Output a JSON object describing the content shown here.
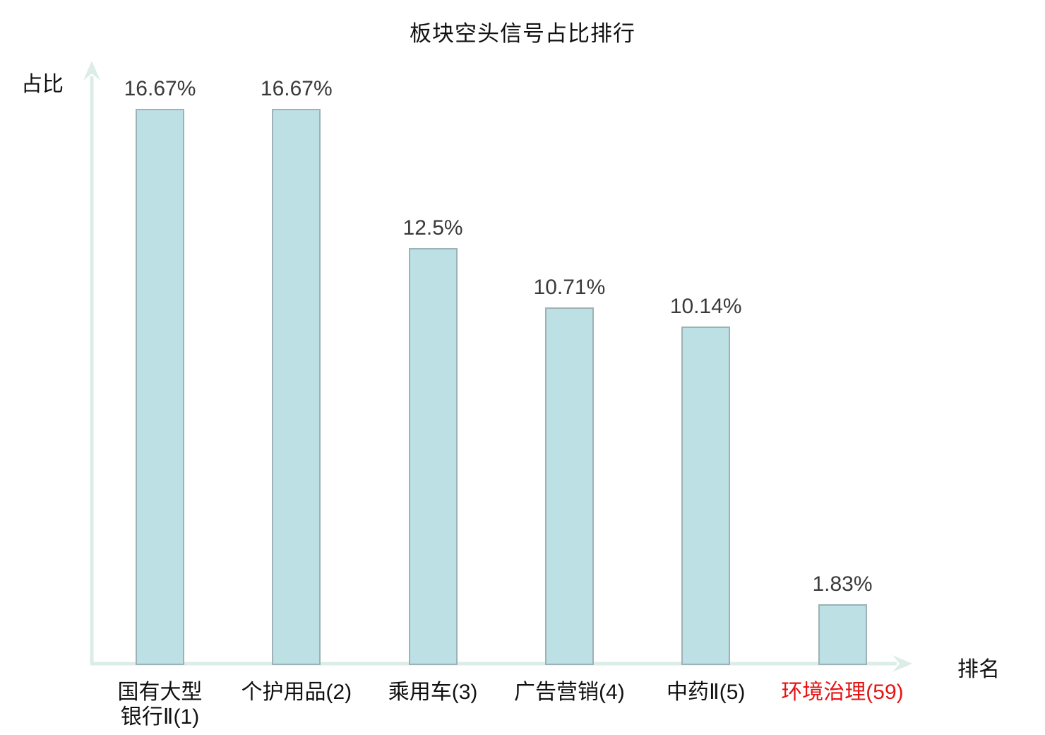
{
  "chart_data": {
    "type": "bar",
    "title": "板块空头信号占比排行",
    "xlabel": "排名",
    "ylabel": "占比",
    "categories": [
      "国有大型\n银行Ⅱ(1)",
      "个护用品(2)",
      "乘用车(3)",
      "广告营销(4)",
      "中药Ⅱ(5)",
      "环境治理(59)"
    ],
    "values": [
      16.67,
      16.67,
      12.5,
      10.71,
      10.14,
      1.83
    ],
    "value_labels": [
      "16.67%",
      "16.67%",
      "12.5%",
      "10.71%",
      "10.14%",
      "1.83%"
    ],
    "highlight_index": 5,
    "ylim": [
      0,
      17.8
    ],
    "grid": false,
    "legend": false,
    "style": {
      "bar_fill": "#bde0e5",
      "bar_border": "#9cb2b6",
      "axis_color": "#dcede7",
      "value_label_color": "#3a3a3a",
      "category_label_color": "#111111",
      "highlight_color": "#e61414",
      "background": "#ffffff"
    }
  }
}
